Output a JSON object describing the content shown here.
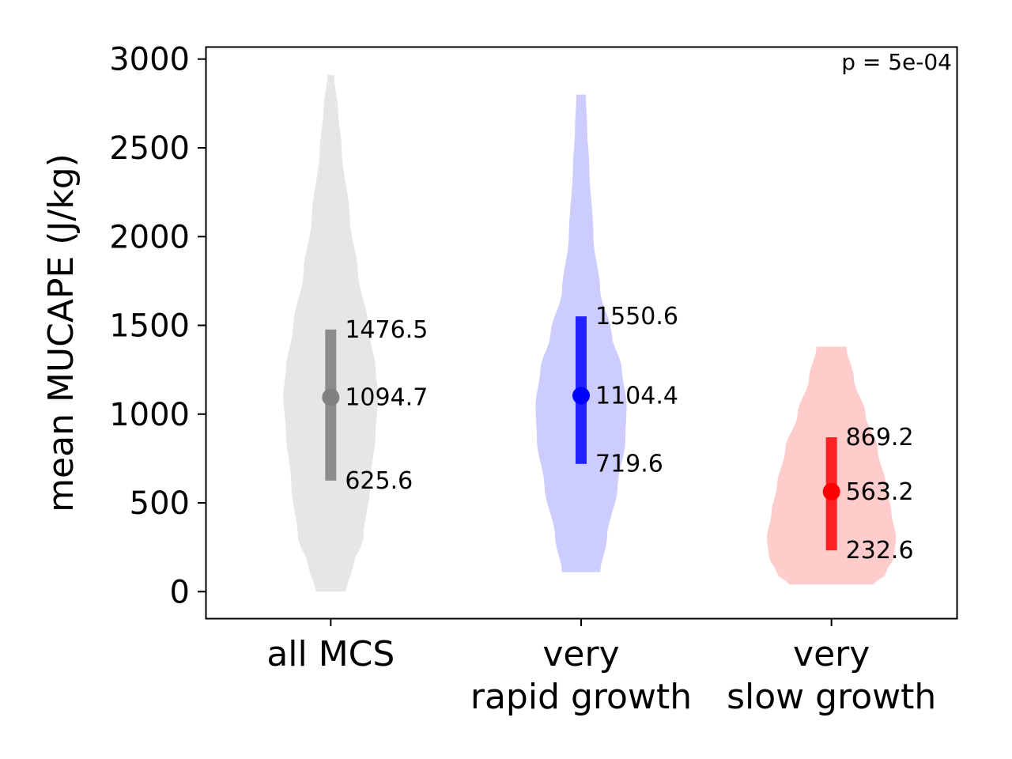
{
  "chart_data": {
    "type": "violin",
    "ylabel": "mean MUCAPE (J/kg)",
    "ylim": [
      -150,
      3070
    ],
    "yticks": [
      0,
      500,
      1000,
      1500,
      2000,
      2500,
      3000
    ],
    "ytick_labels": [
      "0",
      "500",
      "1000",
      "1500",
      "2000",
      "2500",
      "3000"
    ],
    "annotation": "p = 5e-04",
    "annotation_position": "top-right",
    "categories": [
      {
        "label_lines": [
          "all MCS"
        ]
      },
      {
        "label_lines": [
          "very",
          "rapid growth"
        ]
      },
      {
        "label_lines": [
          "very",
          "slow growth"
        ]
      }
    ],
    "series": [
      {
        "category_index": 0,
        "median": 1094.7,
        "q1": 625.6,
        "q3": 1476.5,
        "median_label": "1094.7",
        "q1_label": "625.6",
        "q3_label": "1476.5",
        "min": 0,
        "max": 2910,
        "fill_color": "#e6e6e6",
        "bar_color": "#8c8c8c",
        "point_color": "#808080",
        "density": [
          [
            0,
            0.22
          ],
          [
            150,
            0.33
          ],
          [
            300,
            0.48
          ],
          [
            600,
            0.58
          ],
          [
            900,
            0.66
          ],
          [
            1100,
            0.7
          ],
          [
            1250,
            0.66
          ],
          [
            1500,
            0.55
          ],
          [
            1800,
            0.4
          ],
          [
            2100,
            0.28
          ],
          [
            2500,
            0.16
          ],
          [
            2700,
            0.11
          ],
          [
            2910,
            0.05
          ]
        ]
      },
      {
        "category_index": 1,
        "median": 1104.4,
        "q1": 719.6,
        "q3": 1550.6,
        "median_label": "1104.4",
        "q1_label": "719.6",
        "q3_label": "1550.6",
        "min": 110,
        "max": 2800,
        "fill_color": "#ccccff",
        "bar_color": "#2222ff",
        "point_color": "#0000ff",
        "density": [
          [
            110,
            0.28
          ],
          [
            300,
            0.38
          ],
          [
            600,
            0.54
          ],
          [
            850,
            0.65
          ],
          [
            1050,
            0.67
          ],
          [
            1250,
            0.6
          ],
          [
            1450,
            0.45
          ],
          [
            1700,
            0.28
          ],
          [
            2000,
            0.18
          ],
          [
            2400,
            0.12
          ],
          [
            2600,
            0.09
          ],
          [
            2800,
            0.07
          ]
        ]
      },
      {
        "category_index": 2,
        "median": 563.2,
        "q1": 232.6,
        "q3": 869.2,
        "median_label": "563.2",
        "q1_label": "232.6",
        "q3_label": "869.2",
        "min": 40,
        "max": 1380,
        "fill_color": "#ffcccc",
        "bar_color": "#ff2222",
        "point_color": "#ff0000",
        "density": [
          [
            40,
            0.62
          ],
          [
            100,
            0.8
          ],
          [
            200,
            0.92
          ],
          [
            300,
            0.95
          ],
          [
            450,
            0.88
          ],
          [
            600,
            0.8
          ],
          [
            800,
            0.68
          ],
          [
            1000,
            0.5
          ],
          [
            1200,
            0.33
          ],
          [
            1380,
            0.22
          ]
        ]
      }
    ]
  }
}
